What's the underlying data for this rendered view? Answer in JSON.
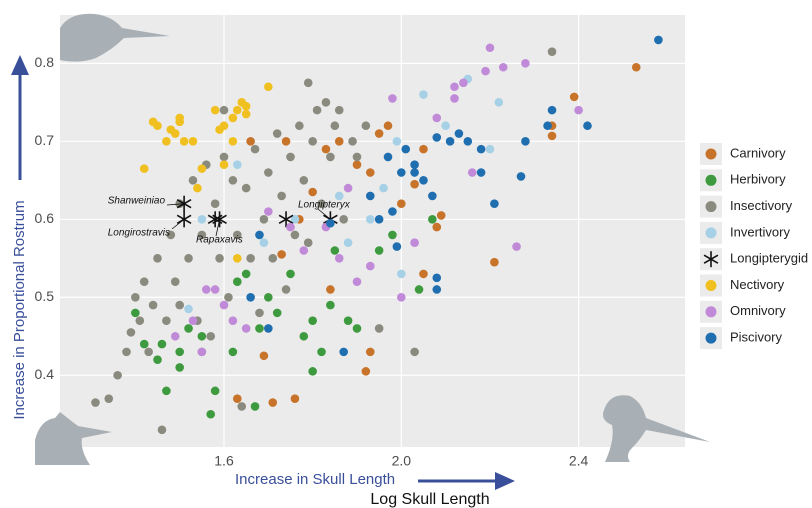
{
  "chart_data": {
    "type": "scatter",
    "x_label": "Log Skull Length",
    "x_arrow_label": "Increase in Skull Length",
    "y_arrow_label": "Increase in Proportional Rostrum",
    "xlim": [
      1.23,
      2.64
    ],
    "ylim": [
      0.308,
      0.862
    ],
    "xticks": [
      1.6,
      {
        "value": 2,
        "label": "2.0"
      },
      2.4
    ],
    "yticks": [
      0.4,
      0.5,
      0.6,
      0.7,
      0.8
    ],
    "grid": true,
    "legend": "right",
    "annotations": [
      "Shanweiniao",
      "Longirostravis",
      "Rapaxavis",
      "Longipteryx"
    ],
    "series": [
      {
        "name": "Carnivory",
        "color": "#c8732a",
        "x": [
          2.53,
          2.39,
          2.34,
          2.34,
          2.21,
          2.09,
          2.08,
          2.05,
          2.03,
          2.0,
          1.97,
          1.95,
          1.93,
          1.9,
          1.86,
          1.83,
          1.8,
          1.77,
          1.73,
          1.69,
          1.63,
          1.71,
          1.76,
          1.92,
          1.93,
          1.84,
          1.66,
          1.74,
          2.05
        ],
        "values": [
          0.795,
          0.757,
          0.72,
          0.707,
          0.545,
          0.605,
          0.59,
          0.69,
          0.645,
          0.62,
          0.72,
          0.71,
          0.66,
          0.67,
          0.7,
          0.69,
          0.635,
          0.6,
          0.555,
          0.425,
          0.37,
          0.365,
          0.37,
          0.405,
          0.43,
          0.51,
          0.7,
          0.7,
          0.53
        ]
      },
      {
        "name": "Herbivory",
        "color": "#3e9a3e",
        "x": [
          1.4,
          1.42,
          1.45,
          1.46,
          1.47,
          1.5,
          1.5,
          1.52,
          1.55,
          1.58,
          1.57,
          1.62,
          1.63,
          1.65,
          1.68,
          1.7,
          1.72,
          1.75,
          1.78,
          1.8,
          1.82,
          1.84,
          1.85,
          1.88,
          1.9,
          1.95,
          1.98,
          2.04,
          2.07,
          1.8,
          1.67
        ],
        "values": [
          0.48,
          0.44,
          0.42,
          0.44,
          0.38,
          0.43,
          0.41,
          0.46,
          0.45,
          0.38,
          0.35,
          0.43,
          0.52,
          0.53,
          0.46,
          0.5,
          0.48,
          0.53,
          0.45,
          0.47,
          0.43,
          0.49,
          0.56,
          0.47,
          0.46,
          0.56,
          0.58,
          0.51,
          0.6,
          0.405,
          0.36
        ]
      },
      {
        "name": "Insectivory",
        "color": "#8a8a7e",
        "x": [
          1.31,
          1.34,
          1.36,
          1.38,
          1.39,
          1.4,
          1.41,
          1.42,
          1.43,
          1.44,
          1.45,
          1.46,
          1.47,
          1.48,
          1.49,
          1.5,
          1.5,
          1.52,
          1.53,
          1.54,
          1.55,
          1.56,
          1.57,
          1.58,
          1.59,
          1.6,
          1.61,
          1.62,
          1.63,
          1.64,
          1.65,
          1.66,
          1.67,
          1.68,
          1.69,
          1.7,
          1.71,
          1.72,
          1.73,
          1.74,
          1.75,
          1.76,
          1.77,
          1.78,
          1.79,
          1.8,
          1.81,
          1.82,
          1.83,
          1.84,
          1.85,
          1.86,
          1.87,
          1.89,
          1.9,
          1.92,
          2.03,
          2.34,
          1.79,
          1.95,
          1.6,
          1.55
        ],
        "values": [
          0.365,
          0.37,
          0.4,
          0.43,
          0.455,
          0.5,
          0.47,
          0.52,
          0.43,
          0.49,
          0.55,
          0.33,
          0.47,
          0.58,
          0.52,
          0.62,
          0.49,
          0.55,
          0.65,
          0.47,
          0.58,
          0.67,
          0.45,
          0.62,
          0.55,
          0.68,
          0.5,
          0.65,
          0.58,
          0.36,
          0.64,
          0.55,
          0.69,
          0.48,
          0.6,
          0.66,
          0.55,
          0.71,
          0.63,
          0.51,
          0.68,
          0.58,
          0.72,
          0.65,
          0.57,
          0.7,
          0.74,
          0.62,
          0.75,
          0.68,
          0.72,
          0.74,
          0.6,
          0.7,
          0.68,
          0.72,
          0.43,
          0.815,
          0.775,
          0.46,
          0.74,
          0.43
        ]
      },
      {
        "name": "Invertivory",
        "color": "#a6d0e6",
        "x": [
          1.52,
          1.55,
          1.63,
          1.69,
          1.76,
          1.86,
          1.88,
          1.93,
          1.96,
          1.99,
          2.0,
          2.05,
          2.1,
          2.2,
          2.22,
          2.15
        ],
        "values": [
          0.485,
          0.6,
          0.67,
          0.57,
          0.6,
          0.63,
          0.57,
          0.6,
          0.64,
          0.7,
          0.53,
          0.76,
          0.72,
          0.69,
          0.75,
          0.78
        ]
      },
      {
        "name": "Longipterygid",
        "color": "#111111",
        "marker": "asterisk",
        "x": [
          1.51,
          1.51,
          1.58,
          1.59,
          1.74,
          1.84
        ],
        "values": [
          0.62,
          0.6,
          0.6,
          0.6,
          0.6,
          0.6
        ]
      },
      {
        "name": "Nectivory",
        "color": "#f0c020",
        "x": [
          1.42,
          1.44,
          1.45,
          1.47,
          1.48,
          1.49,
          1.5,
          1.51,
          1.53,
          1.55,
          1.58,
          1.59,
          1.6,
          1.62,
          1.63,
          1.64,
          1.65,
          1.62,
          1.6,
          1.65,
          1.7,
          1.54,
          1.63,
          1.5
        ],
        "values": [
          0.665,
          0.725,
          0.72,
          0.7,
          0.715,
          0.71,
          0.73,
          0.7,
          0.7,
          0.665,
          0.74,
          0.715,
          0.72,
          0.73,
          0.74,
          0.75,
          0.745,
          0.7,
          0.67,
          0.735,
          0.77,
          0.64,
          0.55,
          0.725
        ]
      },
      {
        "name": "Omnivory",
        "color": "#c08ad8",
        "x": [
          1.49,
          1.53,
          1.55,
          1.56,
          1.58,
          1.6,
          1.62,
          1.65,
          1.7,
          1.75,
          1.78,
          1.83,
          1.86,
          1.88,
          1.9,
          1.93,
          1.98,
          2.0,
          2.03,
          2.08,
          2.12,
          2.14,
          2.16,
          2.19,
          2.2,
          2.23,
          2.26,
          2.28,
          2.4,
          2.12
        ],
        "values": [
          0.45,
          0.47,
          0.43,
          0.51,
          0.51,
          0.49,
          0.47,
          0.46,
          0.61,
          0.59,
          0.56,
          0.59,
          0.55,
          0.64,
          0.52,
          0.54,
          0.755,
          0.5,
          0.57,
          0.73,
          0.77,
          0.775,
          0.66,
          0.79,
          0.82,
          0.795,
          0.565,
          0.8,
          0.74,
          0.755
        ]
      },
      {
        "name": "Piscivory",
        "color": "#1f6fb0",
        "x": [
          2.58,
          2.42,
          2.34,
          2.33,
          2.27,
          2.28,
          2.18,
          2.18,
          2.21,
          2.15,
          2.13,
          2.11,
          2.08,
          2.07,
          2.05,
          2.03,
          2.01,
          2.0,
          1.98,
          1.99,
          2.08,
          2.08,
          1.97,
          1.95,
          1.93,
          1.87,
          1.84,
          1.68,
          1.66,
          1.7,
          2.03
        ],
        "values": [
          0.83,
          0.72,
          0.74,
          0.72,
          0.655,
          0.7,
          0.66,
          0.69,
          0.62,
          0.7,
          0.71,
          0.7,
          0.705,
          0.63,
          0.65,
          0.67,
          0.69,
          0.66,
          0.61,
          0.565,
          0.51,
          0.525,
          0.68,
          0.6,
          0.63,
          0.43,
          0.595,
          0.58,
          0.5,
          0.46,
          0.66
        ]
      }
    ]
  }
}
